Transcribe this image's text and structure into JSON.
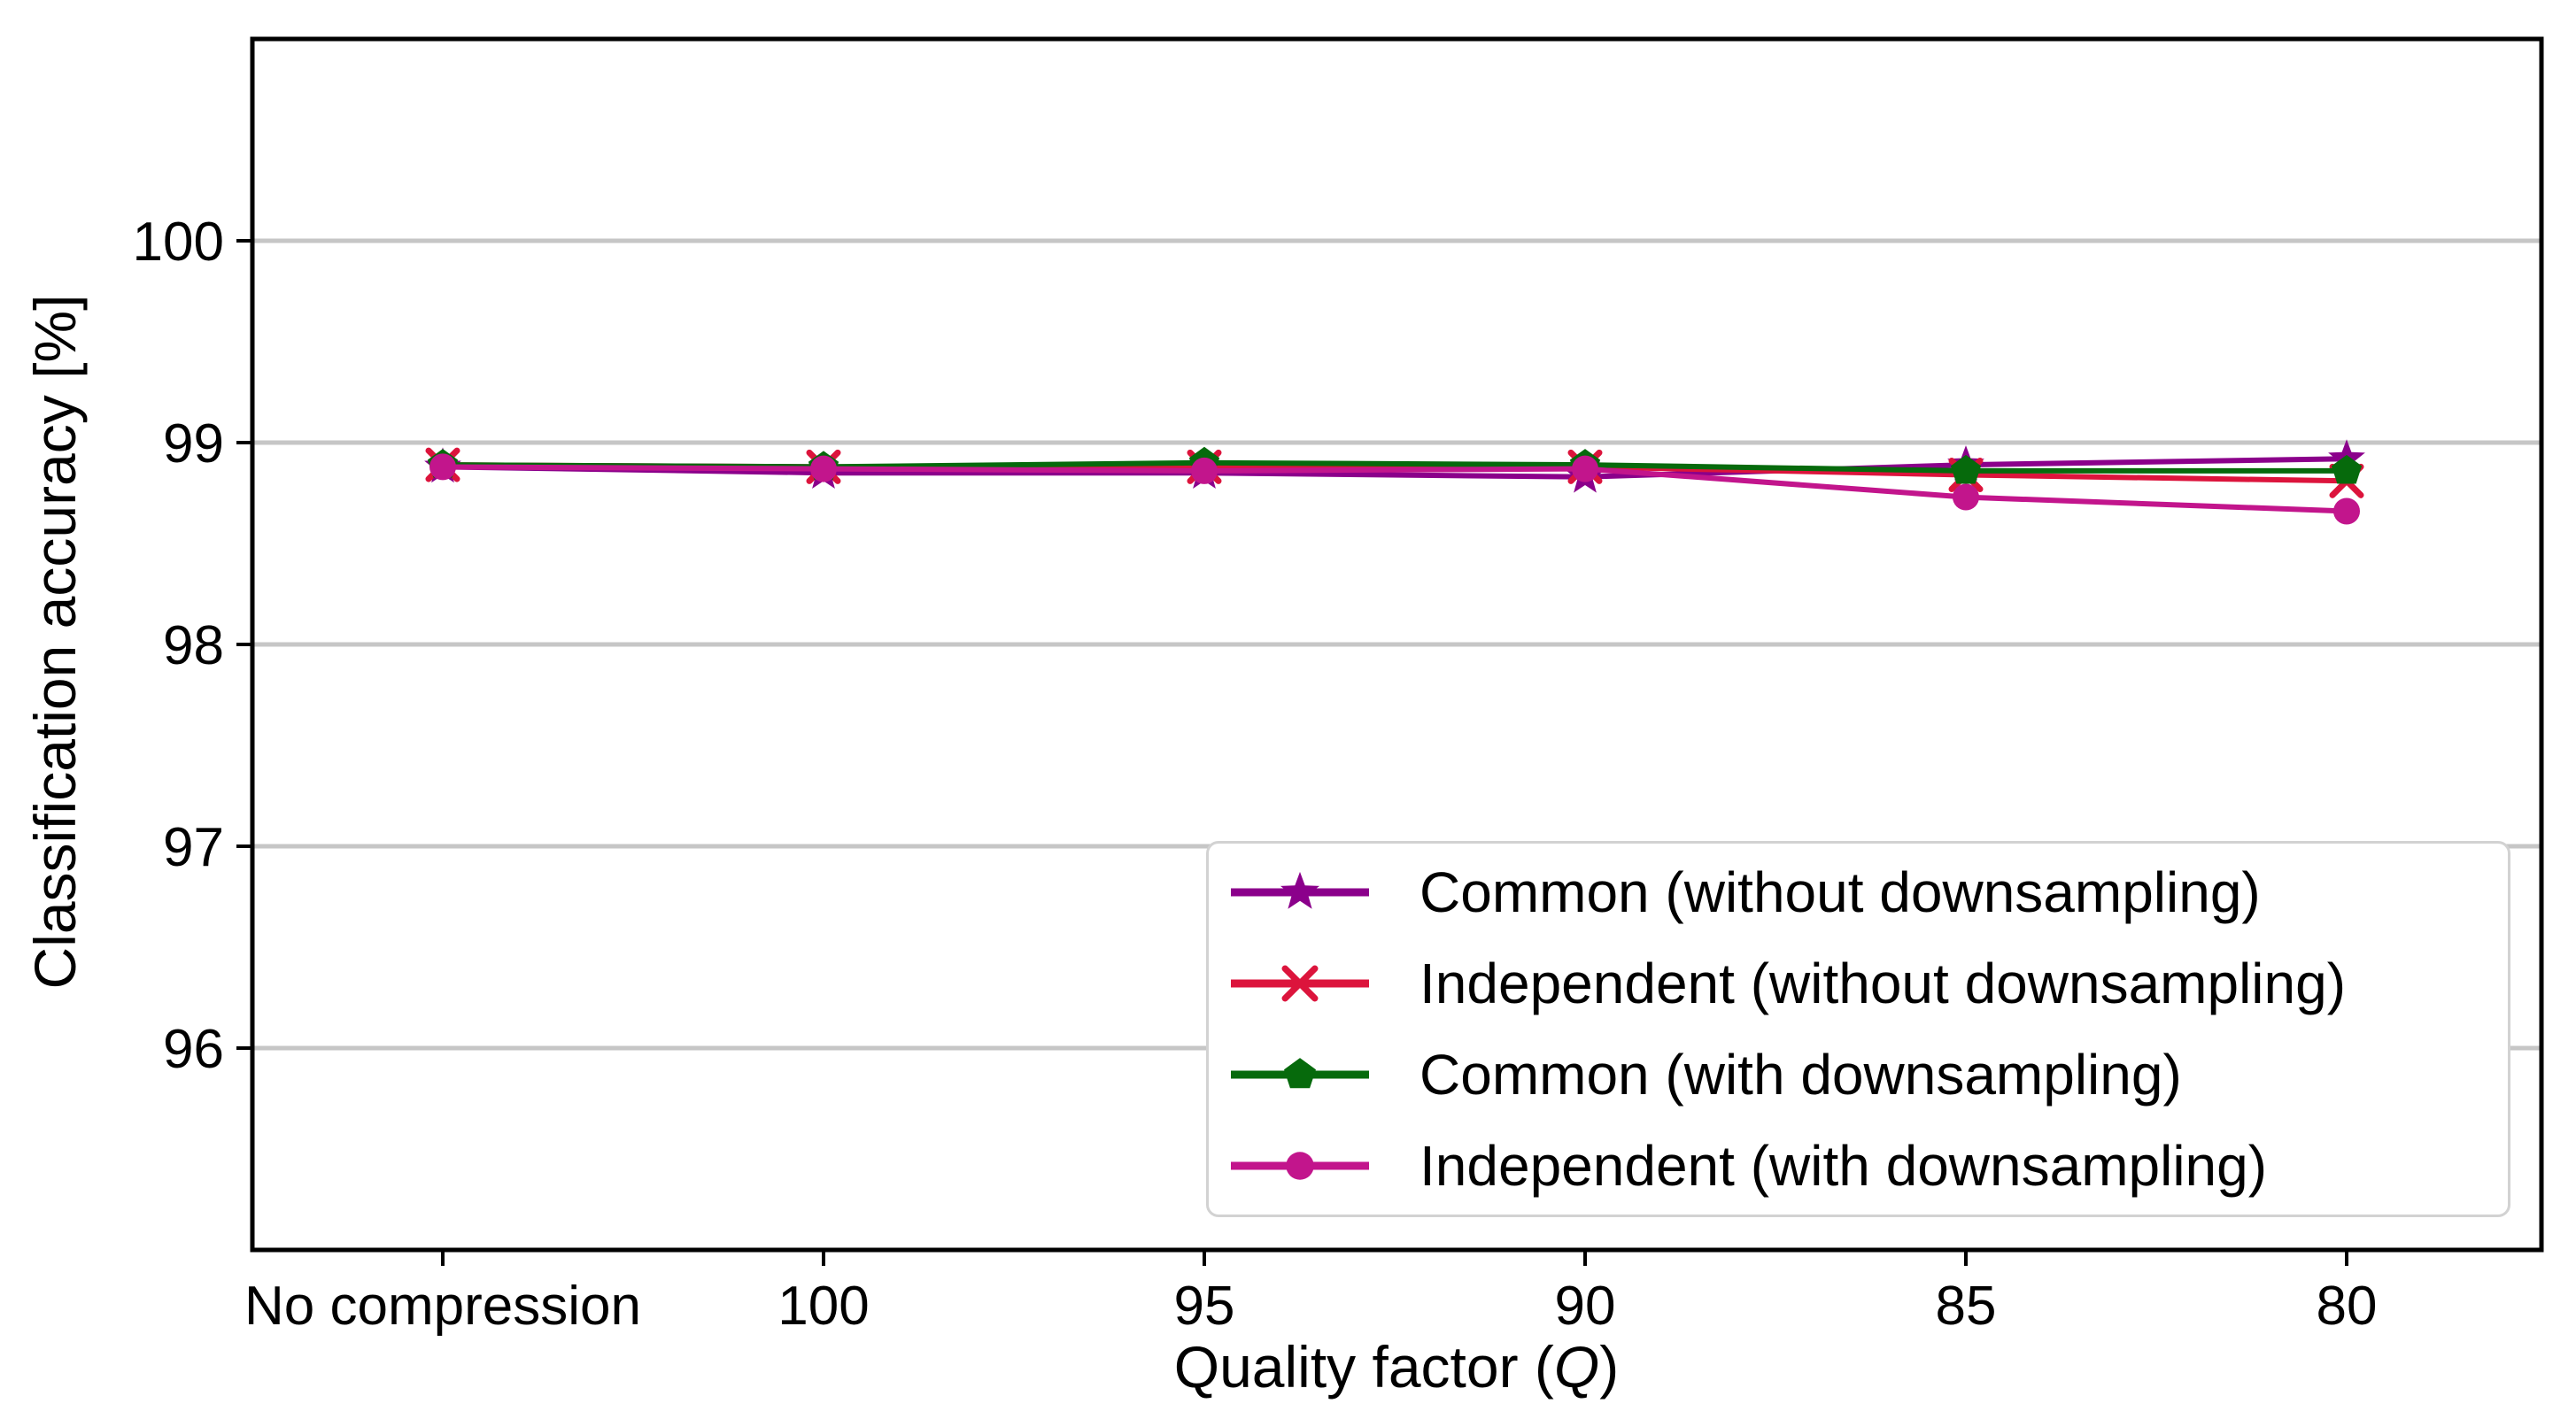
{
  "figure": {
    "ylabel": "Classification accuracy [%]",
    "xlabel_prefix": "Quality factor (",
    "xlabel_q": "Q",
    "xlabel_suffix": ")"
  },
  "chart_data": {
    "type": "line",
    "title": "",
    "xlabel": "Quality factor (Q)",
    "ylabel": "Classification accuracy [%]",
    "categories": [
      "No compression",
      "100",
      "95",
      "90",
      "85",
      "80"
    ],
    "ylim": [
      95.0,
      101.0
    ],
    "yticks": [
      96,
      97,
      98,
      99,
      100
    ],
    "grid": true,
    "grid_color": "#c6c6c6",
    "legend_position": "lower right",
    "series": [
      {
        "name": "Common (without downsampling)",
        "marker": "star",
        "color": "#8B008B",
        "values": [
          98.88,
          98.85,
          98.85,
          98.83,
          98.89,
          98.92
        ]
      },
      {
        "name": "Independent (without downsampling)",
        "marker": "x",
        "color": "#DC143C",
        "values": [
          98.89,
          98.88,
          98.88,
          98.88,
          98.84,
          98.81
        ]
      },
      {
        "name": "Common (with downsampling)",
        "marker": "pentagon",
        "color": "#066A0C",
        "values": [
          98.89,
          98.88,
          98.9,
          98.89,
          98.86,
          98.86
        ]
      },
      {
        "name": "Independent (with downsampling)",
        "marker": "circle",
        "color": "#C2158C",
        "values": [
          98.88,
          98.87,
          98.86,
          98.87,
          98.73,
          98.66
        ]
      }
    ]
  }
}
